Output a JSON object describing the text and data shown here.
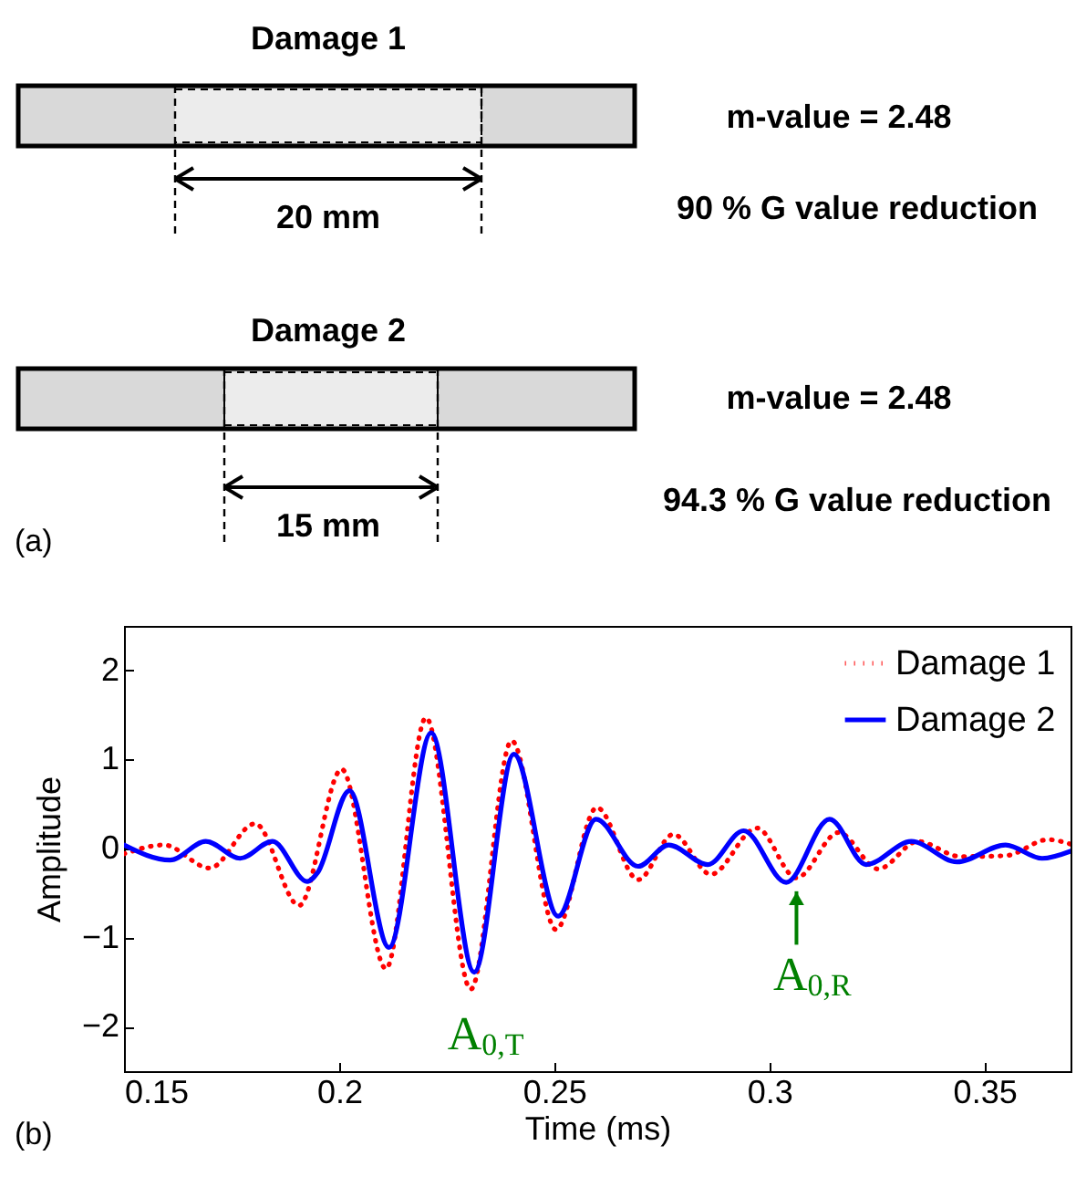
{
  "chart_data": [
    {
      "type": "other",
      "annotations": [
        "Damage 1",
        "m-value = 2.48",
        "20 mm",
        "90 % G value reduction",
        "Damage 2",
        "m-value = 2.48",
        "15 mm",
        "94.3 % G value reduction",
        "(a)"
      ]
    },
    {
      "type": "line",
      "xlabel": "Time (ms)",
      "ylabel": "Amplitude",
      "xlim": [
        0.15,
        0.37
      ],
      "ylim": [
        -2.5,
        2.5
      ],
      "xticks": [
        0.15,
        0.2,
        0.25,
        0.3,
        0.35
      ],
      "yticks": [
        -2,
        -1,
        0,
        1,
        2
      ],
      "legend": "top right",
      "series": [
        {
          "name": "Damage 1",
          "color": "#ff0000",
          "line_style": "dotted",
          "x": [
            0.15,
            0.1593,
            0.1699,
            0.1805,
            0.1907,
            0.2006,
            0.2109,
            0.2202,
            0.2306,
            0.2401,
            0.2504,
            0.2599,
            0.2695,
            0.2777,
            0.2864,
            0.2971,
            0.3063,
            0.3161,
            0.3253,
            0.3345,
            0.3444,
            0.3549,
            0.3648,
            0.37
          ],
          "values": [
            -0.06,
            0.04,
            -0.22,
            0.28,
            -0.64,
            0.89,
            -1.35,
            1.47,
            -1.58,
            1.21,
            -0.91,
            0.46,
            -0.35,
            0.16,
            -0.29,
            0.23,
            -0.33,
            0.18,
            -0.23,
            0.08,
            -0.09,
            -0.08,
            0.1,
            0.05
          ]
        },
        {
          "name": "Damage 2",
          "color": "#0000ff",
          "line_style": "solid",
          "x": [
            0.15,
            0.1607,
            0.169,
            0.177,
            0.1845,
            0.1926,
            0.195,
            0.2024,
            0.2116,
            0.2214,
            0.2314,
            0.2406,
            0.2509,
            0.2597,
            0.2695,
            0.2766,
            0.2857,
            0.294,
            0.3039,
            0.314,
            0.3225,
            0.333,
            0.3436,
            0.3549,
            0.3634,
            0.37
          ],
          "values": [
            0.04,
            -0.13,
            0.08,
            -0.11,
            0.08,
            -0.37,
            -0.27,
            0.65,
            -1.11,
            1.3,
            -1.39,
            1.06,
            -0.76,
            0.33,
            -0.2,
            0.04,
            -0.18,
            0.2,
            -0.38,
            0.33,
            -0.18,
            0.08,
            -0.15,
            0.04,
            -0.11,
            -0.03
          ]
        }
      ],
      "annotations": [
        {
          "text": "A$_{0,T}$",
          "x": 0.2306,
          "y": -1.58
        },
        {
          "text": "A$_{0,R}$",
          "x": 0.3063,
          "y": -0.33
        },
        "(b)"
      ]
    }
  ]
}
